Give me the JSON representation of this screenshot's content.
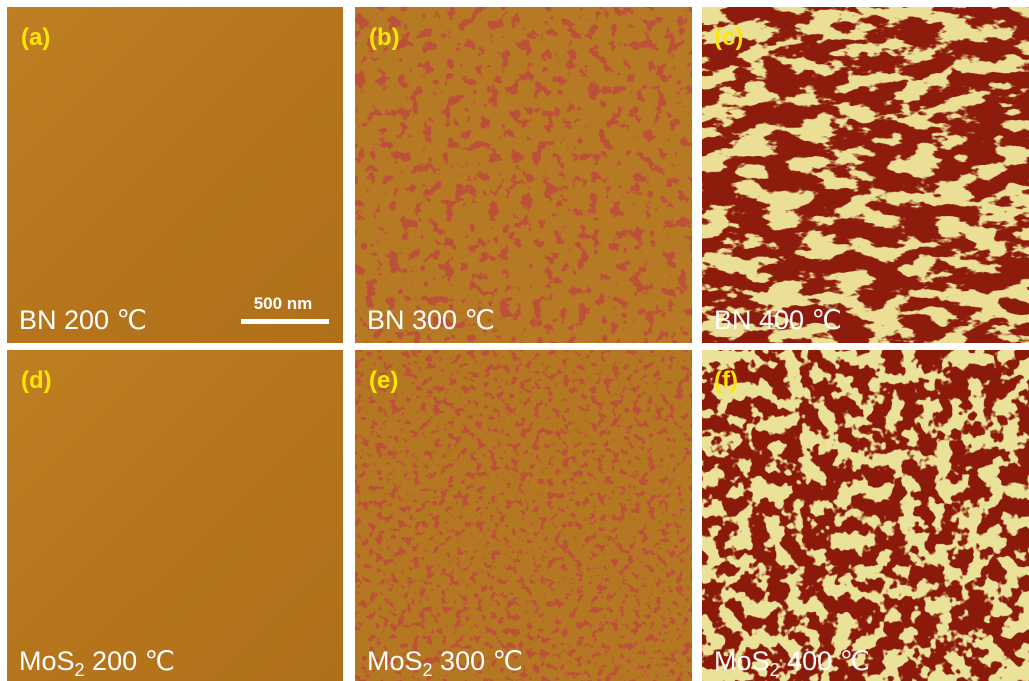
{
  "panels": [
    {
      "label": "(a)",
      "caption": {
        "text": "BN 200 ℃"
      }
    },
    {
      "label": "(b)",
      "caption": {
        "text": "BN 300 ℃"
      }
    },
    {
      "label": "(c)",
      "caption": {
        "text": "BN 400 ℃"
      }
    },
    {
      "label": "(d)",
      "caption": {
        "main": "MoS",
        "sub": "2",
        "rest": " 200 ℃"
      }
    },
    {
      "label": "(e)",
      "caption": {
        "main": "MoS",
        "sub": "2",
        "rest": " 300 ℃"
      }
    },
    {
      "label": "(f)",
      "caption": {
        "main": "MoS",
        "sub": "2",
        "rest": " 400 ℃"
      }
    }
  ],
  "scale_bar": "500 nm"
}
